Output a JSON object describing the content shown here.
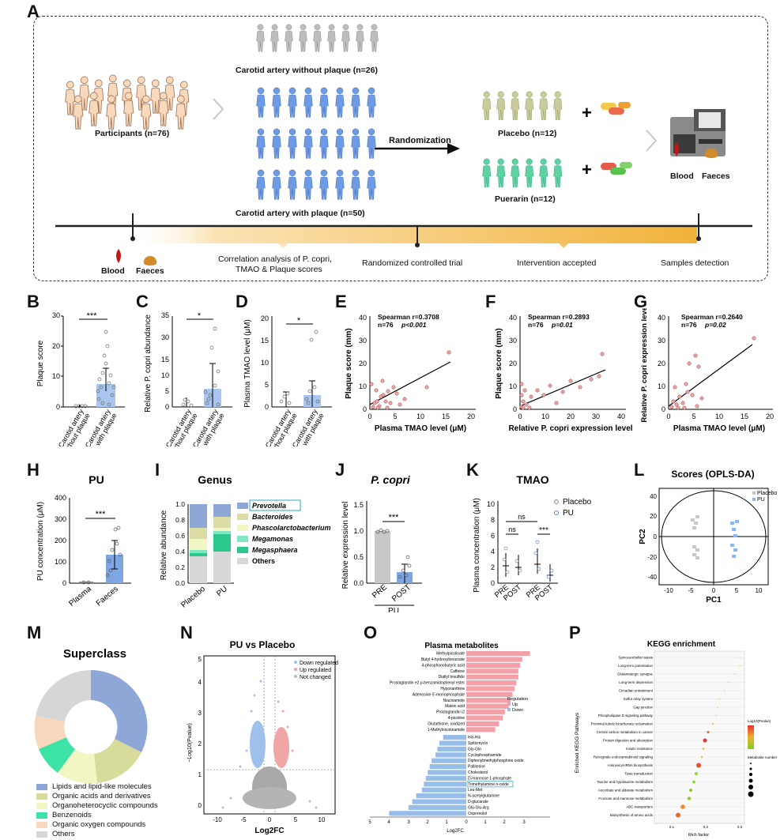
{
  "panels": {
    "A": "A",
    "B": "B",
    "C": "C",
    "D": "D",
    "E": "E",
    "F": "F",
    "G": "G",
    "H": "H",
    "I": "I",
    "J": "J",
    "K": "K",
    "L": "L",
    "M": "M",
    "N": "N",
    "O": "O",
    "P": "P"
  },
  "panelA": {
    "participants": "Participants (n=76)",
    "no_plaque": "Carotid artery without plaque (n=26)",
    "with_plaque": "Carotid artery with plaque (n=50)",
    "randomization": "Randomization",
    "placebo": "Placebo (n=12)",
    "puerarin": "Puerarin (n=12)",
    "blood": "Blood",
    "faeces": "Faeces",
    "blood2": "Blood",
    "faeces2": "Faeces",
    "timeline1": "Correlation analysis of P. copri,",
    "timeline1b": "TMAO & Plaque scores",
    "timeline2": "Randomized controlled trial",
    "timeline3": "Intervention accepted",
    "timeline4": "Samples detection",
    "colors": {
      "gray": "#b8b8b8",
      "blue": "#6d9be6",
      "olive": "#c3c792",
      "green": "#5dd3a4",
      "orange": "#f1b23a"
    }
  },
  "panelB": {
    "ylabel": "Plaque score",
    "ticks": [
      "0",
      "10",
      "20",
      "30"
    ],
    "cats": [
      "Carotid artery\nwithout plaque",
      "Carotid artery\nwith plaque"
    ],
    "sig": "***"
  },
  "panelC": {
    "ylabel": "Relative P. copri abundance",
    "ticks": [
      "0",
      "5",
      "10",
      "15",
      "30",
      "35"
    ],
    "sig": "*"
  },
  "panelD": {
    "ylabel": "Plasma TMAO level (μM)",
    "ticks": [
      "0",
      "5",
      "10",
      "15",
      "20"
    ],
    "sig": "*"
  },
  "panelE": {
    "title1": "Spearman r=0.3708",
    "title2": "n=76",
    "title3": "p<0.001",
    "ylabel": "Plaque score (mm)",
    "xlabel": "Plasma TMAO level (μM)",
    "xticks": [
      "0",
      "5",
      "10",
      "15",
      "20"
    ],
    "yticks": [
      "0",
      "10",
      "20",
      "30",
      "40"
    ]
  },
  "panelF": {
    "title1": "Spearman r=0.2893",
    "title2": "n=76",
    "title3": "p=0.01",
    "ylabel": "Plaque score (mm)",
    "xlabel": "Relative P. copri expression level",
    "xticks": [
      "0",
      "10",
      "20",
      "30",
      "40"
    ],
    "yticks": [
      "0",
      "10",
      "20",
      "30",
      "40"
    ]
  },
  "panelG": {
    "title1": "Spearman r=0.2640",
    "title2": "n=76",
    "title3": "p=0.02",
    "ylabel": "Relative P. copri expression level",
    "xlabel": "Plasma TMAO level (μM)",
    "xticks": [
      "0",
      "5",
      "10",
      "15",
      "20"
    ],
    "yticks": [
      "0",
      "10",
      "20",
      "30",
      "40"
    ]
  },
  "panelH": {
    "title": "PU",
    "ylabel": "PU concentration (μM)",
    "ticks": [
      "0",
      "100",
      "200",
      "300",
      "400"
    ],
    "cats": [
      "Plasma",
      "Faeces"
    ],
    "sig": "***"
  },
  "panelI": {
    "title": "Genus",
    "ylabel": "Relative abundance",
    "ticks": [
      "0.0",
      "0.2",
      "0.4",
      "0.6",
      "0.8",
      "1.0"
    ],
    "cats": [
      "Placebo",
      "PU"
    ],
    "legend": [
      "Prevotella",
      "Bacteroides",
      "Phascolarctobacterium",
      "Megamonas",
      "Megasphaera",
      "Others"
    ]
  },
  "panelJ": {
    "title": "P. copri",
    "ylabel": "Relative expression level",
    "ticks": [
      "0.0",
      "0.5",
      "1.0",
      "1.5"
    ],
    "cats": [
      "PRE",
      "POST"
    ],
    "group": "PU",
    "sig": "***"
  },
  "panelK": {
    "title": "TMAO",
    "ylabel": "Plasma concentration (μM)",
    "ticks": [
      "0",
      "2",
      "4",
      "6",
      "8",
      "10"
    ],
    "cats": [
      "PRE",
      "POST",
      "PRE",
      "POST"
    ],
    "legend": [
      "Placebo",
      "PU"
    ],
    "ns1": "ns",
    "ns2": "ns",
    "sig": "***"
  },
  "panelL": {
    "title": "Scores (OPLS-DA)",
    "xlabel": "PC1",
    "ylabel": "PC2",
    "legend": [
      "Placebo",
      "PU"
    ],
    "xticks": [
      "-10",
      "-5",
      "0",
      "5",
      "10"
    ],
    "yticks": [
      "40",
      "20",
      "0",
      "-20",
      "-40"
    ]
  },
  "panelM": {
    "title": "Superclass",
    "legend": [
      "Lipids and lipid-like molecules",
      "Organic acids and derivatives",
      "Organoheterocyclic compounds",
      "Benzenoids",
      "Organic oxygen compounds",
      "Others"
    ]
  },
  "panelN": {
    "title": "PU vs Placebo",
    "ylabel": "−Log10(Pvalue)",
    "xlabel": "Log2FC",
    "legend": [
      "Down regulated",
      "Up regulated",
      "Not changed"
    ],
    "xticks": [
      "-10",
      "-5",
      "0",
      "5",
      "10"
    ],
    "yticks": [
      "0",
      "1",
      "2",
      "3",
      "4",
      "5"
    ]
  },
  "panelO": {
    "title": "Plasma metabolites",
    "xlabel": "Log2FC",
    "reg_title": "Regulation",
    "reg": [
      "Up",
      "Down"
    ],
    "up": [
      "Methylpicolinate",
      "Butyl 4-hydroxybenzoate",
      "4-phosphonobutyric acid",
      "Caffeine",
      "Diallyl trisulfide",
      "Prostaglandin e2 p-benzamidophenyl ester",
      "Hypoxanthine",
      "Adenosine 5'-monophosphate",
      "Niacinamide",
      "Maleic acid",
      "Prostaglandin i2",
      "4-picoline",
      "Glutathione, oxidized",
      "1-Methylnicotinamide"
    ],
    "down": [
      "His-His",
      "Spiticmycin",
      "Gly-Gln",
      "Cyclophosphamide",
      "Diphenylmethylphosphine oxide",
      "Palliterine",
      "Cholesterol",
      "D-mannose 1-phosphate",
      "Trimethylamine n-oxide",
      "Leu-Met",
      "N-acetylglutamine",
      "D-glucarate",
      "Glu-Glu-Arg",
      "Oxprenolol"
    ],
    "xticks": [
      "5",
      "4",
      "3",
      "2",
      "1",
      "0",
      "1",
      "2",
      "3"
    ]
  },
  "panelP": {
    "title": "KEGG enrichment",
    "ylabel": "Enriched KEGG Pathways",
    "xlabel": "Rich factor",
    "pathways": [
      "Spinocerebellar ataxia",
      "Long-term potentiation",
      "Glutamatergic synapse",
      "Long-term depression",
      "Circadian entrainment",
      "Sulfur relay system",
      "Gap junction",
      "Phospholipase D signaling pathway",
      "Proximal tubule bicarbonate reclamation",
      "Central carbon metabolism in cancer",
      "Protein digestion and absorption",
      "Insulin resistance",
      "Retrograde endocannabinoid signaling",
      "Aminoacyl-tRNA biosynthesis",
      "Taste transduction",
      "Taurine and hypotaurine metabolism",
      "Ascorbate and aldarate metabolism",
      "Fructose and mannose metabolism",
      "ABC transporters",
      "Biosynthesis of amino acids"
    ],
    "legend1": "Log10(Pvalue)",
    "legend2": "Metabolite number",
    "xticks": [
      "0.1",
      "0.2",
      "0.3"
    ]
  }
}
